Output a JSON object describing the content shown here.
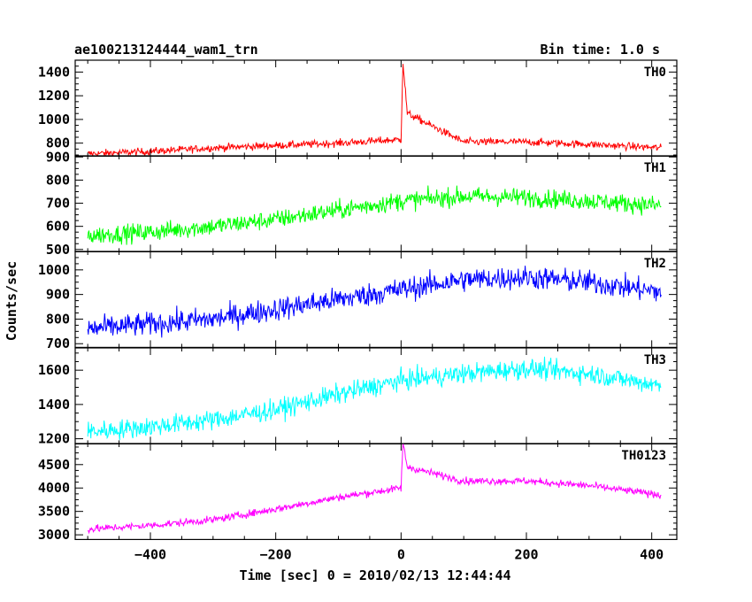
{
  "header": {
    "title": "ae100213124444_wam1_trn",
    "bin_time": "Bin time: 1.0 s"
  },
  "chart_data": {
    "type": "line",
    "title": "ae100213124444_wam1_trn",
    "subtitle": "Bin time: 1.0 s",
    "xlabel": "Time [sec] 0 = 2010/02/13 12:44:44",
    "ylabel": "Counts/sec",
    "xlim": [
      -520,
      440
    ],
    "x_ticks": [
      -400,
      -200,
      0,
      200,
      400
    ],
    "x_tick_labels": [
      "−400",
      "−200",
      "0",
      "200",
      "400"
    ],
    "x_range": [
      -500,
      415
    ],
    "grid": false,
    "panels": [
      {
        "name": "TH0",
        "color": "#ff0000",
        "ylim": [
          690,
          1500
        ],
        "yticks": [
          800,
          1000,
          1200,
          1400
        ],
        "x": [
          -500,
          -400,
          -300,
          -200,
          -100,
          0,
          3,
          10,
          100,
          200,
          300,
          415
        ],
        "y": [
          710,
          730,
          760,
          780,
          800,
          830,
          1480,
          1050,
          810,
          810,
          790,
          760
        ],
        "noise": 30
      },
      {
        "name": "TH1",
        "color": "#00ff00",
        "ylim": [
          490,
          905
        ],
        "yticks": [
          500,
          600,
          700,
          800,
          900
        ],
        "x": [
          -500,
          -400,
          -300,
          -200,
          -100,
          0,
          100,
          200,
          300,
          415
        ],
        "y": [
          560,
          575,
          600,
          630,
          670,
          710,
          730,
          725,
          710,
          690
        ],
        "noise": 38
      },
      {
        "name": "TH2",
        "color": "#0000ff",
        "ylim": [
          685,
          1075
        ],
        "yticks": [
          700,
          800,
          900,
          1000
        ],
        "x": [
          -500,
          -400,
          -300,
          -200,
          -100,
          0,
          100,
          200,
          300,
          415
        ],
        "y": [
          760,
          780,
          800,
          840,
          880,
          920,
          960,
          970,
          950,
          910
        ],
        "noise": 45
      },
      {
        "name": "TH3",
        "color": "#00ffff",
        "ylim": [
          1170,
          1730
        ],
        "yticks": [
          1200,
          1400,
          1600
        ],
        "x": [
          -500,
          -400,
          -300,
          -200,
          -100,
          0,
          100,
          200,
          300,
          415
        ],
        "y": [
          1240,
          1270,
          1310,
          1370,
          1460,
          1540,
          1580,
          1610,
          1580,
          1510
        ],
        "noise": 55
      },
      {
        "name": "TH0123",
        "color": "#ff00ff",
        "ylim": [
          2900,
          4950
        ],
        "yticks": [
          3000,
          3500,
          4000,
          4500
        ],
        "x": [
          -500,
          -400,
          -300,
          -200,
          -100,
          0,
          3,
          10,
          100,
          200,
          300,
          415
        ],
        "y": [
          3120,
          3200,
          3320,
          3550,
          3800,
          4000,
          4950,
          4450,
          4150,
          4150,
          4050,
          3850
        ],
        "noise": 75
      }
    ]
  }
}
